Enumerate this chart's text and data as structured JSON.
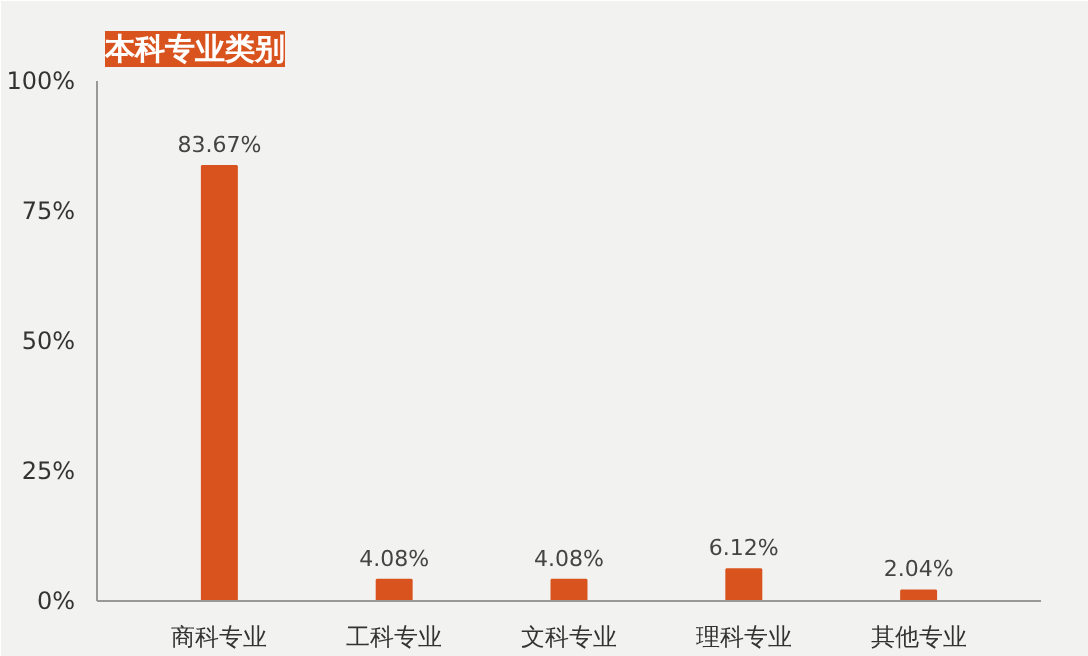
{
  "chart_data": {
    "type": "bar",
    "title": "本科专业类别",
    "categories": [
      "商科专业",
      "工科专业",
      "文科专业",
      "理科专业",
      "其他专业"
    ],
    "values": [
      83.67,
      4.08,
      4.08,
      6.12,
      2.04
    ],
    "value_labels": [
      "83.67%",
      "4.08%",
      "4.08%",
      "6.12%",
      "2.04%"
    ],
    "color": "#d9531e",
    "ylim": [
      0,
      100
    ],
    "yticks": [
      {
        "value": 0,
        "label": "0%"
      },
      {
        "value": 25,
        "label": "25%"
      },
      {
        "value": 50,
        "label": "50%"
      },
      {
        "value": 75,
        "label": "75%"
      },
      {
        "value": 100,
        "label": "100%"
      }
    ],
    "grid": false
  }
}
